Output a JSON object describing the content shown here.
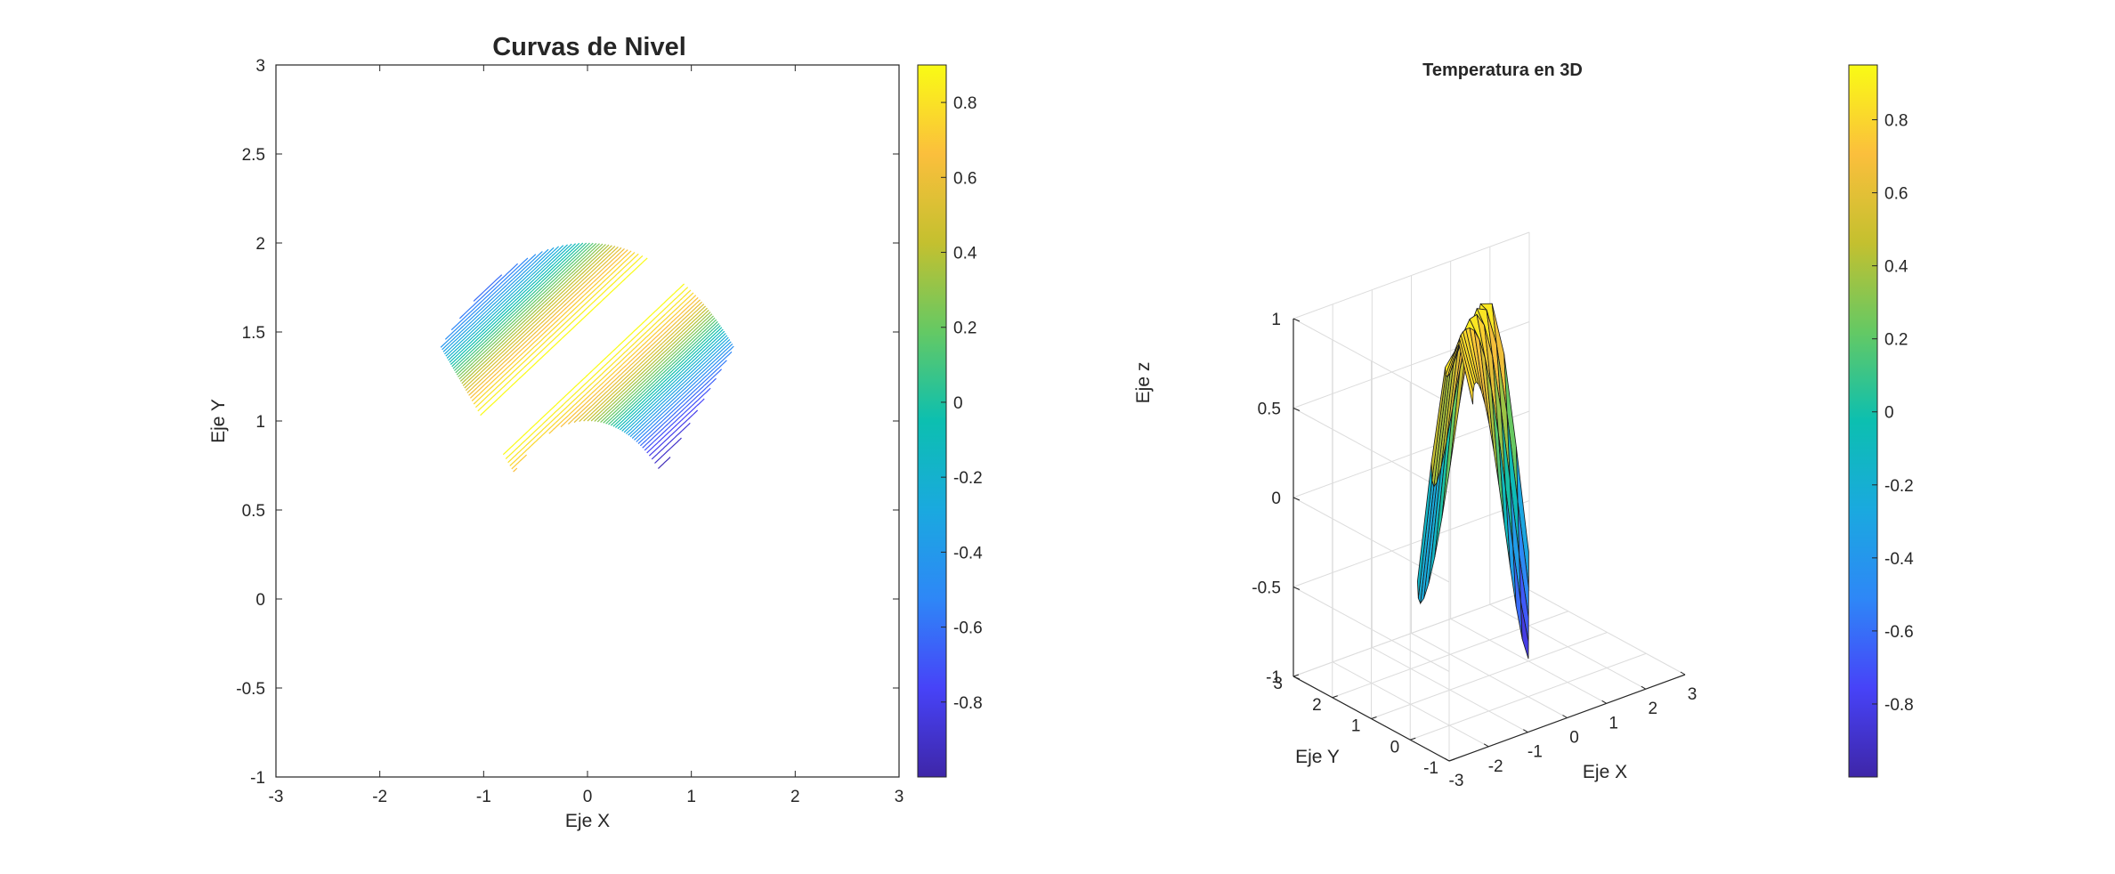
{
  "chart_data": [
    {
      "type": "contour",
      "title": "Curvas de Nivel",
      "xlabel": "Eje X",
      "ylabel": "Eje Y",
      "xlim": [
        -3,
        3
      ],
      "ylim": [
        -1,
        3
      ],
      "xticks": [
        "-3",
        "-2",
        "-1",
        "0",
        "1",
        "2",
        "3"
      ],
      "yticks": [
        "-1",
        "-0.5",
        "0",
        "0.5",
        "1",
        "1.5",
        "2",
        "2.5",
        "3"
      ],
      "region": {
        "r_min": 1,
        "r_max": 2,
        "theta_min_deg": 45,
        "theta_max_deg": 135
      },
      "level_range": [
        -0.95,
        0.9
      ],
      "colorbar": {
        "ticks": [
          "-0.8",
          "-0.6",
          "-0.4",
          "-0.2",
          "0",
          "0.2",
          "0.4",
          "0.6",
          "0.8"
        ],
        "range": [
          -1,
          0.9
        ],
        "colormap": "parula"
      }
    },
    {
      "type": "surface",
      "title": "Temperatura en 3D",
      "xlabel": "Eje X",
      "ylabel": "Eje Y",
      "zlabel": "Eje z",
      "xlim": [
        -3,
        3
      ],
      "ylim": [
        -1,
        3
      ],
      "zlim": [
        -1,
        1
      ],
      "xticks": [
        "-3",
        "-2",
        "-1",
        "0",
        "1",
        "2",
        "3"
      ],
      "yticks": [
        "-1",
        "0",
        "1",
        "2",
        "3"
      ],
      "zticks": [
        "-1",
        "-0.5",
        "0",
        "0.5",
        "1"
      ],
      "region": {
        "r_min": 1,
        "r_max": 2,
        "theta_min_deg": 45,
        "theta_max_deg": 135
      },
      "z_range": [
        -0.95,
        0.95
      ],
      "colorbar": {
        "ticks": [
          "-0.8",
          "-0.6",
          "-0.4",
          "-0.2",
          "0",
          "0.2",
          "0.4",
          "0.6",
          "0.8"
        ],
        "range": [
          -1,
          0.95
        ],
        "colormap": "parula"
      }
    }
  ]
}
